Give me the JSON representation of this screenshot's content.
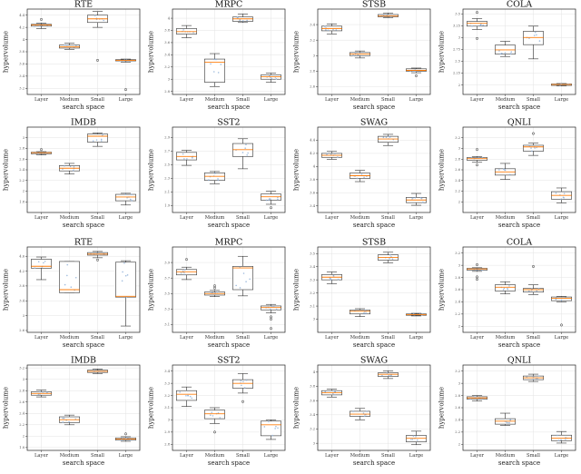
{
  "common": {
    "xlabel": "search space",
    "ylabel": "hypervolume",
    "categories": [
      "Layer",
      "Medium",
      "Small",
      "Large"
    ],
    "colors": {
      "box_edge": "#333333",
      "median": "#ff7f0e",
      "points": "#8fb0d8",
      "grid": "#e3e3e3"
    }
  },
  "chart_data": [
    {
      "type": "box",
      "title": "RTE",
      "ylim": [
        3.1,
        4.5
      ],
      "yticks": [
        3.2,
        3.4,
        3.6,
        3.8,
        4.0,
        4.2,
        4.4
      ],
      "boxes": [
        {
          "q1": 4.22,
          "median": 4.24,
          "q3": 4.25,
          "whislo": 4.18,
          "whishi": 4.27,
          "fliers": [
            4.33
          ]
        },
        {
          "q1": 3.86,
          "median": 3.88,
          "q3": 3.91,
          "whislo": 3.84,
          "whishi": 3.94,
          "fliers": []
        },
        {
          "q1": 4.28,
          "median": 4.34,
          "q3": 4.4,
          "whislo": 4.2,
          "whishi": 4.46,
          "fliers": [
            3.66
          ]
        },
        {
          "q1": 3.65,
          "median": 3.66,
          "q3": 3.67,
          "whislo": 3.63,
          "whishi": 3.68,
          "fliers": [
            3.18
          ]
        }
      ]
    },
    {
      "type": "box",
      "title": "MRPC",
      "ylim": [
        2.75,
        4.15
      ],
      "yticks": [
        2.8,
        3.0,
        3.2,
        3.4,
        3.6,
        3.8,
        4.0
      ],
      "boxes": [
        {
          "q1": 3.74,
          "median": 3.78,
          "q3": 3.83,
          "whislo": 3.68,
          "whishi": 3.88,
          "fliers": []
        },
        {
          "q1": 2.95,
          "median": 3.28,
          "q3": 3.33,
          "whislo": 2.88,
          "whishi": 3.42,
          "fliers": []
        },
        {
          "q1": 3.95,
          "median": 3.99,
          "q3": 4.02,
          "whislo": 3.93,
          "whishi": 4.07,
          "fliers": []
        },
        {
          "q1": 3.0,
          "median": 3.04,
          "q3": 3.07,
          "whislo": 2.95,
          "whishi": 3.1,
          "fliers": []
        }
      ]
    },
    {
      "type": "box",
      "title": "STSB",
      "ylim": [
        2.5,
        3.6
      ],
      "yticks": [
        2.6,
        2.8,
        3.0,
        3.2,
        3.4
      ],
      "boxes": [
        {
          "q1": 3.32,
          "median": 3.35,
          "q3": 3.38,
          "whislo": 3.28,
          "whishi": 3.41,
          "fliers": []
        },
        {
          "q1": 3.0,
          "median": 3.02,
          "q3": 3.04,
          "whislo": 2.97,
          "whishi": 3.06,
          "fliers": []
        },
        {
          "q1": 3.5,
          "median": 3.51,
          "q3": 3.53,
          "whislo": 3.49,
          "whishi": 3.55,
          "fliers": []
        },
        {
          "q1": 2.8,
          "median": 2.81,
          "q3": 2.83,
          "whislo": 2.78,
          "whishi": 2.84,
          "fliers": [
            2.74
          ]
        }
      ]
    },
    {
      "type": "box",
      "title": "COLA",
      "ylim": [
        1.8,
        3.6
      ],
      "yticks": [
        2.0,
        2.25,
        2.5,
        2.75,
        3.0,
        3.25,
        3.5
      ],
      "boxes": [
        {
          "q1": 3.24,
          "median": 3.3,
          "q3": 3.34,
          "whislo": 3.17,
          "whishi": 3.4,
          "fliers": [
            3.53,
            2.98
          ]
        },
        {
          "q1": 2.65,
          "median": 2.74,
          "q3": 2.84,
          "whislo": 2.6,
          "whishi": 2.92,
          "fliers": []
        },
        {
          "q1": 2.85,
          "median": 3.0,
          "q3": 3.13,
          "whislo": 2.55,
          "whishi": 3.24,
          "fliers": []
        },
        {
          "q1": 1.99,
          "median": 2.01,
          "q3": 2.02,
          "whislo": 1.98,
          "whishi": 2.03,
          "fliers": []
        }
      ]
    },
    {
      "type": "box",
      "title": "IMDB",
      "ylim": [
        1.6,
        3.2
      ],
      "yticks": [
        1.8,
        2.0,
        2.2,
        2.4,
        2.6,
        2.8,
        3.0
      ],
      "boxes": [
        {
          "q1": 2.7,
          "median": 2.72,
          "q3": 2.73,
          "whislo": 2.68,
          "whishi": 2.74,
          "fliers": [
            2.78
          ]
        },
        {
          "q1": 2.38,
          "median": 2.43,
          "q3": 2.48,
          "whislo": 2.32,
          "whishi": 2.52,
          "fliers": []
        },
        {
          "q1": 2.92,
          "median": 3.03,
          "q3": 3.07,
          "whislo": 2.84,
          "whishi": 3.09,
          "fliers": []
        },
        {
          "q1": 1.82,
          "median": 1.89,
          "q3": 1.94,
          "whislo": 1.74,
          "whishi": 1.96,
          "fliers": []
        }
      ]
    },
    {
      "type": "box",
      "title": "SST2",
      "ylim": [
        1.8,
        3.05
      ],
      "yticks": [
        1.9,
        2.1,
        2.3,
        2.5,
        2.7,
        2.9
      ],
      "boxes": [
        {
          "q1": 2.57,
          "median": 2.62,
          "q3": 2.68,
          "whislo": 2.49,
          "whishi": 2.71,
          "fliers": []
        },
        {
          "q1": 2.27,
          "median": 2.33,
          "q3": 2.38,
          "whislo": 2.22,
          "whishi": 2.4,
          "fliers": []
        },
        {
          "q1": 2.62,
          "median": 2.72,
          "q3": 2.81,
          "whislo": 2.44,
          "whishi": 2.88,
          "fliers": []
        },
        {
          "q1": 1.98,
          "median": 2.03,
          "q3": 2.07,
          "whislo": 1.92,
          "whishi": 2.11,
          "fliers": [
            1.87
          ]
        }
      ]
    },
    {
      "type": "box",
      "title": "SWAG",
      "ylim": [
        3.3,
        4.6
      ],
      "yticks": [
        3.4,
        3.6,
        3.8,
        4.0,
        4.2,
        4.4
      ],
      "boxes": [
        {
          "q1": 4.14,
          "median": 4.17,
          "q3": 4.2,
          "whislo": 4.11,
          "whishi": 4.23,
          "fliers": []
        },
        {
          "q1": 3.82,
          "median": 3.86,
          "q3": 3.9,
          "whislo": 3.77,
          "whishi": 3.94,
          "fliers": []
        },
        {
          "q1": 4.37,
          "median": 4.42,
          "q3": 4.46,
          "whislo": 4.32,
          "whishi": 4.49,
          "fliers": []
        },
        {
          "q1": 3.45,
          "median": 3.49,
          "q3": 3.53,
          "whislo": 3.41,
          "whishi": 3.59,
          "fliers": []
        }
      ]
    },
    {
      "type": "box",
      "title": "QNLI",
      "ylim": [
        1.8,
        3.4
      ],
      "yticks": [
        2.0,
        2.2,
        2.4,
        2.6,
        2.8,
        3.0,
        3.2
      ],
      "boxes": [
        {
          "q1": 2.78,
          "median": 2.81,
          "q3": 2.83,
          "whislo": 2.74,
          "whishi": 2.85,
          "fliers": [
            2.98,
            2.69
          ]
        },
        {
          "q1": 2.5,
          "median": 2.56,
          "q3": 2.62,
          "whislo": 2.42,
          "whishi": 2.72,
          "fliers": []
        },
        {
          "q1": 2.95,
          "median": 3.03,
          "q3": 3.06,
          "whislo": 2.87,
          "whishi": 3.1,
          "fliers": [
            3.28
          ]
        },
        {
          "q1": 2.05,
          "median": 2.12,
          "q3": 2.19,
          "whislo": 1.98,
          "whishi": 2.26,
          "fliers": []
        }
      ]
    },
    {
      "type": "box",
      "title": "RTE",
      "ylim": [
        2.55,
        4.85
      ],
      "yticks": [
        2.6,
        3.0,
        3.4,
        3.8,
        4.2,
        4.6
      ],
      "boxes": [
        {
          "q1": 4.28,
          "median": 4.33,
          "q3": 4.52,
          "whislo": 3.97,
          "whishi": 4.58,
          "fliers": []
        },
        {
          "q1": 3.62,
          "median": 3.7,
          "q3": 4.46,
          "whislo": 3.62,
          "whishi": 4.46,
          "fliers": []
        },
        {
          "q1": 4.63,
          "median": 4.66,
          "q3": 4.7,
          "whislo": 4.56,
          "whishi": 4.73,
          "fliers": [
            4.5
          ]
        },
        {
          "q1": 3.5,
          "median": 3.52,
          "q3": 4.44,
          "whislo": 2.72,
          "whishi": 4.48,
          "fliers": []
        }
      ]
    },
    {
      "type": "box",
      "title": "MRPC",
      "ylim": [
        3.0,
        4.1
      ],
      "yticks": [
        3.1,
        3.3,
        3.5,
        3.7,
        3.9
      ],
      "boxes": [
        {
          "q1": 3.74,
          "median": 3.78,
          "q3": 3.81,
          "whislo": 3.68,
          "whishi": 3.84,
          "fliers": [
            3.94
          ]
        },
        {
          "q1": 3.48,
          "median": 3.5,
          "q3": 3.52,
          "whislo": 3.46,
          "whishi": 3.54,
          "fliers": [
            3.57,
            3.6
          ]
        },
        {
          "q1": 3.55,
          "median": 3.83,
          "q3": 3.85,
          "whislo": 3.47,
          "whishi": 3.98,
          "fliers": []
        },
        {
          "q1": 3.29,
          "median": 3.32,
          "q3": 3.34,
          "whislo": 3.25,
          "whishi": 3.36,
          "fliers": [
            3.2,
            3.17,
            3.05
          ]
        }
      ]
    },
    {
      "type": "box",
      "title": "STSB",
      "ylim": [
        2.9,
        3.55
      ],
      "yticks": [
        3.0,
        3.1,
        3.2,
        3.3,
        3.4,
        3.5
      ],
      "boxes": [
        {
          "q1": 3.3,
          "median": 3.32,
          "q3": 3.34,
          "whislo": 3.27,
          "whishi": 3.36,
          "fliers": []
        },
        {
          "q1": 3.04,
          "median": 3.06,
          "q3": 3.07,
          "whislo": 3.02,
          "whishi": 3.08,
          "fliers": []
        },
        {
          "q1": 3.45,
          "median": 3.47,
          "q3": 3.49,
          "whislo": 3.43,
          "whishi": 3.51,
          "fliers": []
        },
        {
          "q1": 3.03,
          "median": 3.035,
          "q3": 3.04,
          "whislo": 3.025,
          "whishi": 3.045,
          "fliers": []
        }
      ]
    },
    {
      "type": "box",
      "title": "COLA",
      "ylim": [
        1.9,
        3.3
      ],
      "yticks": [
        2.0,
        2.2,
        2.4,
        2.6,
        2.8,
        3.0,
        3.2
      ],
      "boxes": [
        {
          "q1": 2.92,
          "median": 2.94,
          "q3": 2.95,
          "whislo": 2.9,
          "whishi": 2.96,
          "fliers": [
            3.01,
            2.81,
            2.77
          ]
        },
        {
          "q1": 2.58,
          "median": 2.64,
          "q3": 2.68,
          "whislo": 2.53,
          "whishi": 2.73,
          "fliers": []
        },
        {
          "q1": 2.56,
          "median": 2.6,
          "q3": 2.62,
          "whislo": 2.52,
          "whishi": 2.68,
          "fliers": [
            2.98
          ]
        },
        {
          "q1": 2.42,
          "median": 2.46,
          "q3": 2.48,
          "whislo": 2.4,
          "whishi": 2.49,
          "fliers": [
            2.02
          ]
        }
      ]
    },
    {
      "type": "box",
      "title": "IMDB",
      "ylim": [
        1.75,
        3.25
      ],
      "yticks": [
        1.8,
        2.0,
        2.2,
        2.4,
        2.6,
        2.8,
        3.0,
        3.2
      ],
      "boxes": [
        {
          "q1": 2.72,
          "median": 2.75,
          "q3": 2.78,
          "whislo": 2.69,
          "whishi": 2.81,
          "fliers": []
        },
        {
          "q1": 2.24,
          "median": 2.29,
          "q3": 2.34,
          "whislo": 2.2,
          "whishi": 2.37,
          "fliers": []
        },
        {
          "q1": 3.12,
          "median": 3.14,
          "q3": 3.16,
          "whislo": 3.1,
          "whishi": 3.18,
          "fliers": []
        },
        {
          "q1": 1.93,
          "median": 1.95,
          "q3": 1.97,
          "whislo": 1.91,
          "whishi": 1.99,
          "fliers": [
            2.04
          ]
        }
      ]
    },
    {
      "type": "box",
      "title": "SST2",
      "ylim": [
        2.75,
        3.45
      ],
      "yticks": [
        2.8,
        2.9,
        3.0,
        3.1,
        3.2,
        3.3,
        3.4
      ],
      "boxes": [
        {
          "q1": 3.16,
          "median": 3.21,
          "q3": 3.24,
          "whislo": 3.11,
          "whishi": 3.27,
          "fliers": []
        },
        {
          "q1": 3.01,
          "median": 3.05,
          "q3": 3.08,
          "whislo": 2.97,
          "whishi": 3.1,
          "fliers": [
            2.9
          ]
        },
        {
          "q1": 3.26,
          "median": 3.3,
          "q3": 3.33,
          "whislo": 3.22,
          "whishi": 3.38,
          "fliers": [
            3.15
          ]
        },
        {
          "q1": 2.87,
          "median": 2.96,
          "q3": 2.99,
          "whislo": 2.84,
          "whishi": 3.0,
          "fliers": []
        }
      ]
    },
    {
      "type": "box",
      "title": "SWAG",
      "ylim": [
        2.9,
        4.1
      ],
      "yticks": [
        3.0,
        3.2,
        3.4,
        3.6,
        3.8,
        4.0
      ],
      "boxes": [
        {
          "q1": 3.68,
          "median": 3.71,
          "q3": 3.74,
          "whislo": 3.65,
          "whishi": 3.76,
          "fliers": []
        },
        {
          "q1": 3.38,
          "median": 3.41,
          "q3": 3.45,
          "whislo": 3.33,
          "whishi": 3.49,
          "fliers": []
        },
        {
          "q1": 3.94,
          "median": 3.97,
          "q3": 3.99,
          "whislo": 3.91,
          "whishi": 4.02,
          "fliers": []
        },
        {
          "q1": 3.02,
          "median": 3.07,
          "q3": 3.11,
          "whislo": 2.98,
          "whishi": 3.17,
          "fliers": []
        }
      ]
    },
    {
      "type": "box",
      "title": "QNLI",
      "ylim": [
        1.9,
        3.3
      ],
      "yticks": [
        2.0,
        2.2,
        2.4,
        2.6,
        2.8,
        3.0,
        3.2
      ],
      "boxes": [
        {
          "q1": 2.74,
          "median": 2.76,
          "q3": 2.78,
          "whislo": 2.71,
          "whishi": 2.8,
          "fliers": []
        },
        {
          "q1": 2.33,
          "median": 2.38,
          "q3": 2.42,
          "whislo": 2.31,
          "whishi": 2.51,
          "fliers": []
        },
        {
          "q1": 3.06,
          "median": 3.09,
          "q3": 3.12,
          "whislo": 3.03,
          "whishi": 3.15,
          "fliers": []
        },
        {
          "q1": 2.06,
          "median": 2.1,
          "q3": 2.15,
          "whislo": 2.02,
          "whishi": 2.21,
          "fliers": []
        }
      ]
    }
  ]
}
